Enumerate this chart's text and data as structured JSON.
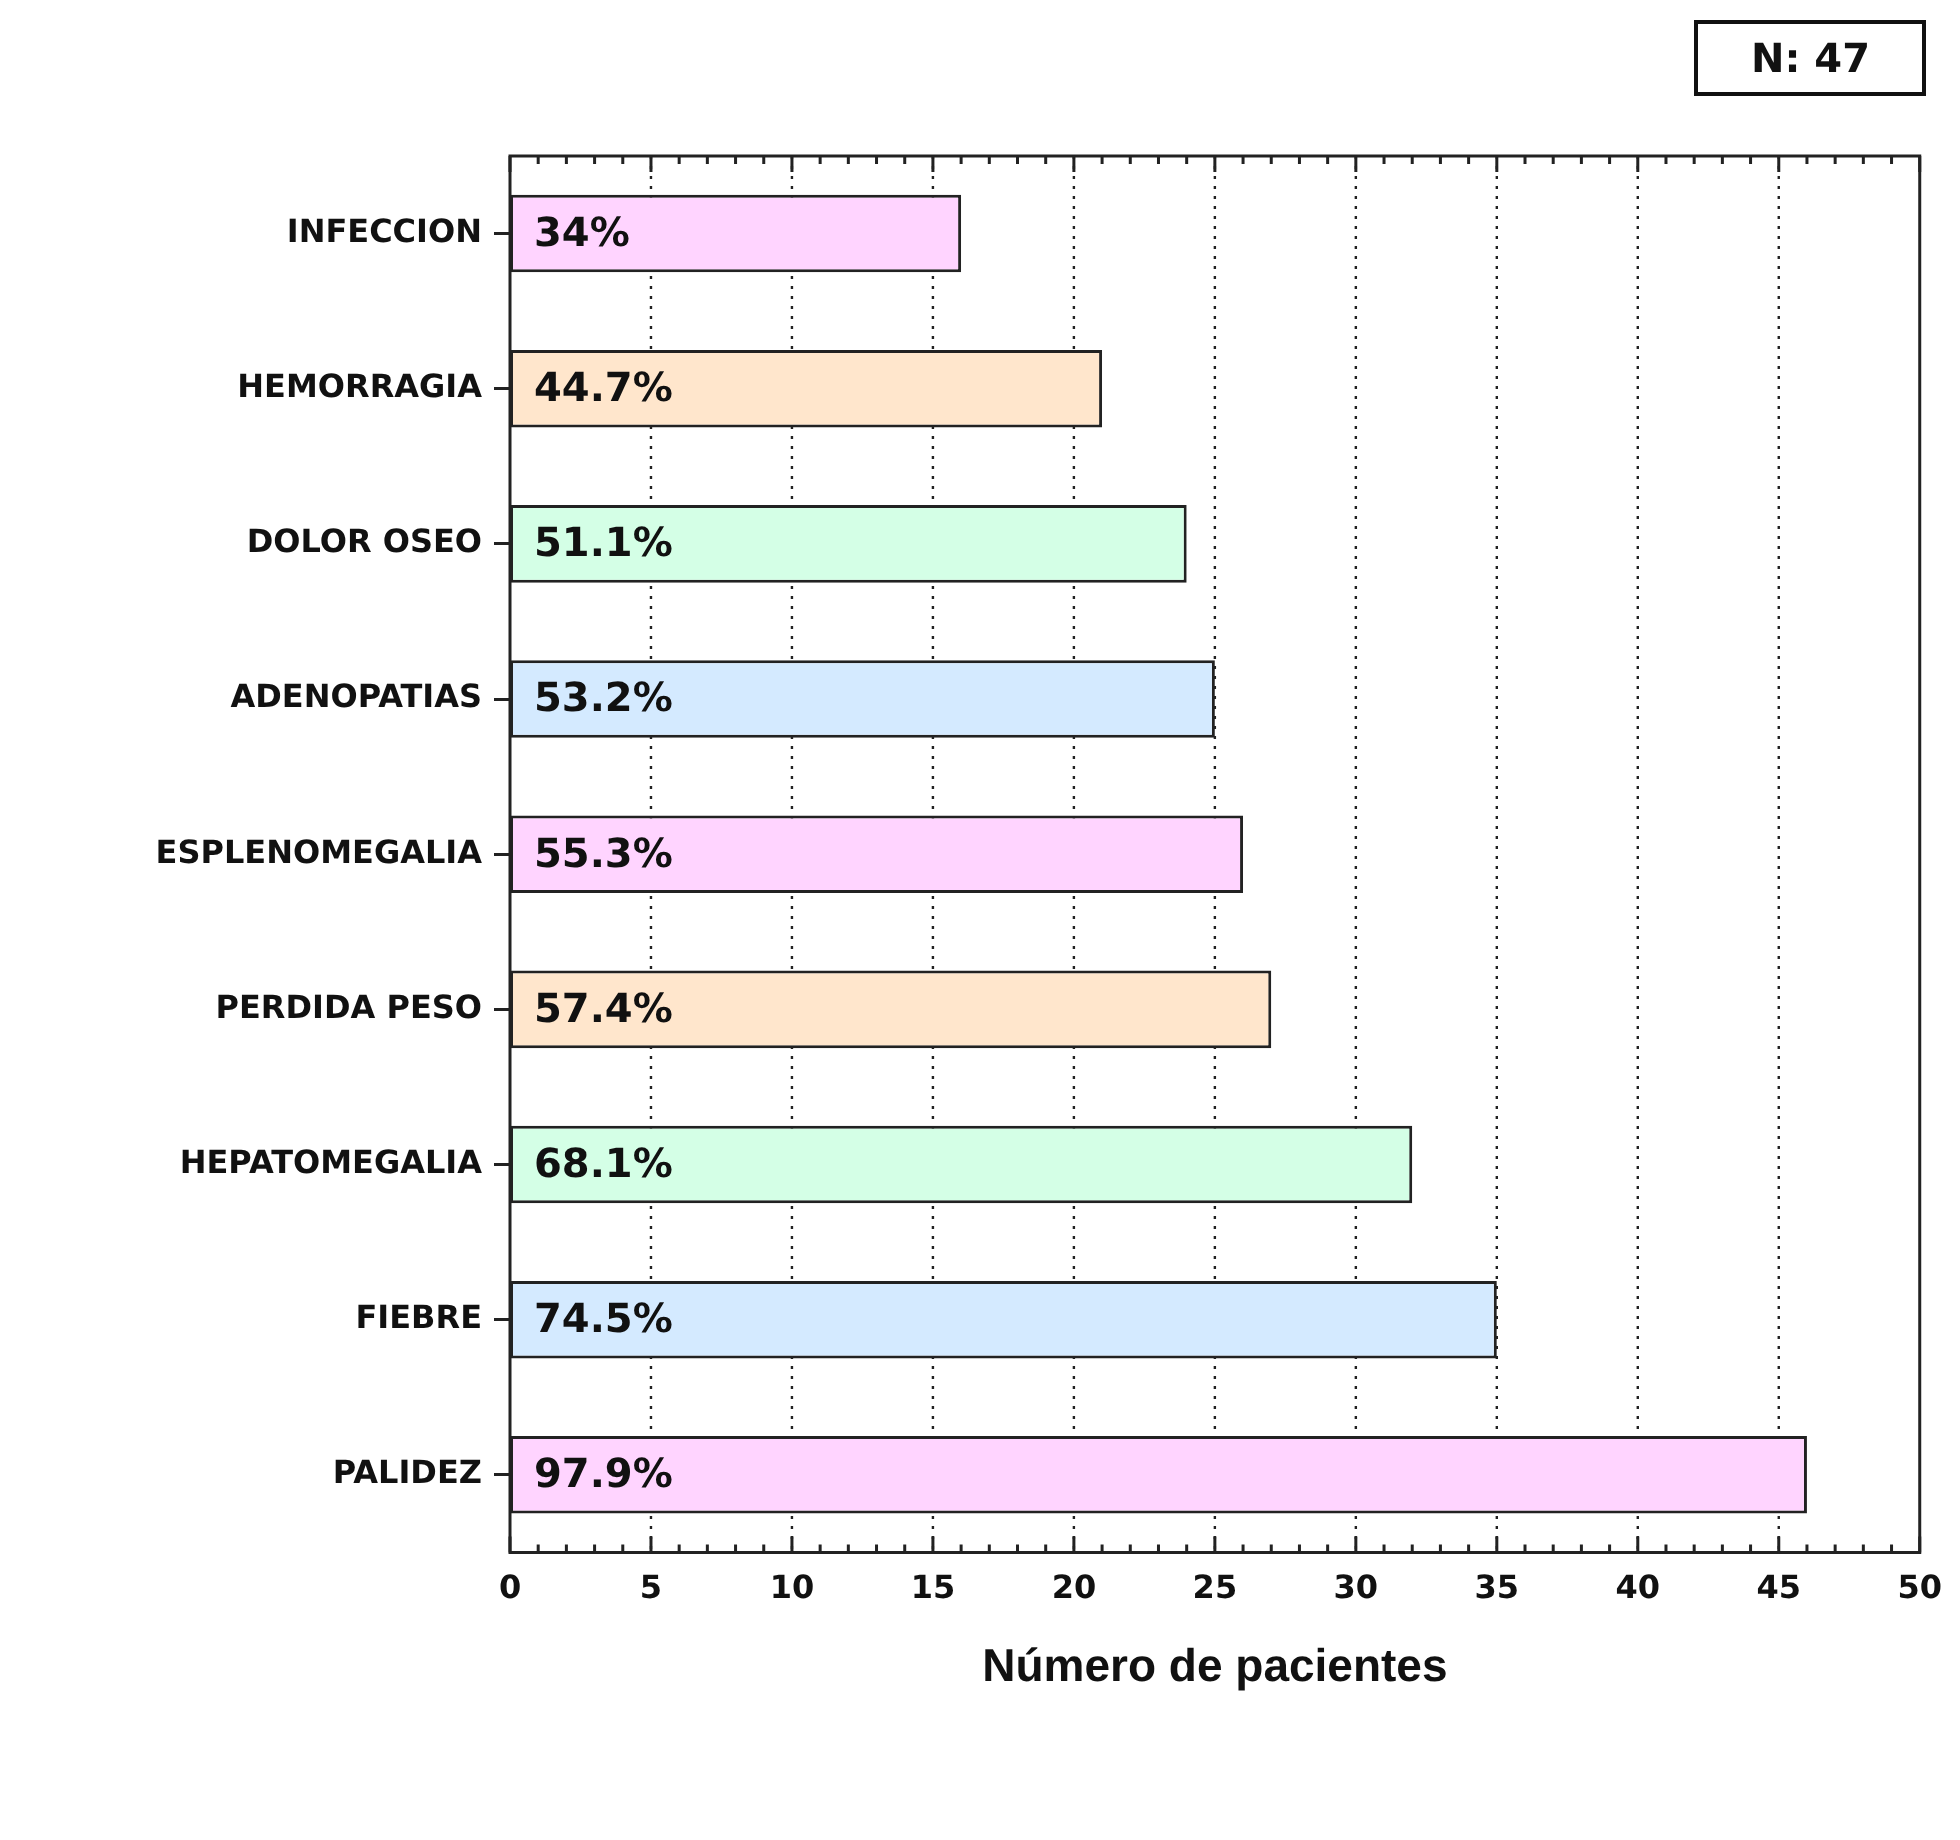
{
  "chart_data": {
    "type": "bar",
    "orientation": "horizontal",
    "xlabel": "Número de pacientes",
    "categories": [
      "INFECCION",
      "HEMORRAGIA",
      "DOLOR OSEO",
      "ADENOPATIAS",
      "ESPLENOMEGALIA",
      "PERDIDA PESO",
      "HEPATOMEGALIA",
      "FIEBRE",
      "PALIDEZ"
    ],
    "values": [
      16,
      21,
      24,
      25,
      26,
      27,
      32,
      35,
      46
    ],
    "colors": [
      "#ffd4ff",
      "#ffe6cc",
      "#d4ffe6",
      "#d4eaff",
      "#ffd4ff",
      "#ffe6cc",
      "#d4ffe6",
      "#d4eaff",
      "#ffd4ff"
    ],
    "xlim": [
      0,
      50
    ],
    "xticks": [
      0,
      {
        "value": 1,
        "label": null
      },
      {
        "value": 2,
        "label": null
      },
      {
        "value": 3,
        "label": null
      },
      {
        "value": 4,
        "label": null
      },
      5,
      {
        "value": 6,
        "label": null
      },
      {
        "value": 7,
        "label": null
      },
      {
        "value": 8,
        "label": null
      },
      {
        "value": 9,
        "label": null
      },
      10,
      {
        "value": 11,
        "label": null
      },
      {
        "value": 12,
        "label": null
      },
      {
        "value": 13,
        "label": null
      },
      {
        "value": 14,
        "label": null
      },
      15,
      {
        "value": 16,
        "label": null
      },
      {
        "value": 17,
        "label": null
      },
      {
        "value": 18,
        "label": null
      },
      {
        "value": 19,
        "label": null
      },
      20,
      {
        "value": 21,
        "label": null
      },
      {
        "value": 22,
        "label": null
      },
      {
        "value": 23,
        "label": null
      },
      {
        "value": 24,
        "label": null
      },
      25,
      {
        "value": 26,
        "label": null
      },
      {
        "value": 27,
        "label": null
      },
      {
        "value": 28,
        "label": null
      },
      {
        "value": 29,
        "label": null
      },
      30,
      {
        "value": 31,
        "label": null
      },
      {
        "value": 32,
        "label": null
      },
      {
        "value": 33,
        "label": null
      },
      {
        "value": 34,
        "label": null
      },
      35,
      {
        "value": 36,
        "label": null
      },
      {
        "value": 37,
        "label": null
      },
      {
        "value": 38,
        "label": null
      },
      {
        "value": 39,
        "label": null
      },
      40,
      {
        "value": 41,
        "label": null
      },
      {
        "value": 42,
        "label": null
      },
      {
        "value": 43,
        "label": null
      },
      {
        "value": 44,
        "label": null
      },
      45,
      {
        "value": 46,
        "label": null
      },
      {
        "value": 47,
        "label": null
      },
      {
        "value": 48,
        "label": null
      },
      {
        "value": 49,
        "label": null
      },
      50
    ],
    "grid": "x",
    "legend": false,
    "annotations": [
      "N: 47",
      "34%",
      "44.7%",
      "51.1%",
      "53.2%",
      "55.3%",
      "57.4%",
      "68.1%",
      "74.5%",
      "97.9%"
    ]
  }
}
